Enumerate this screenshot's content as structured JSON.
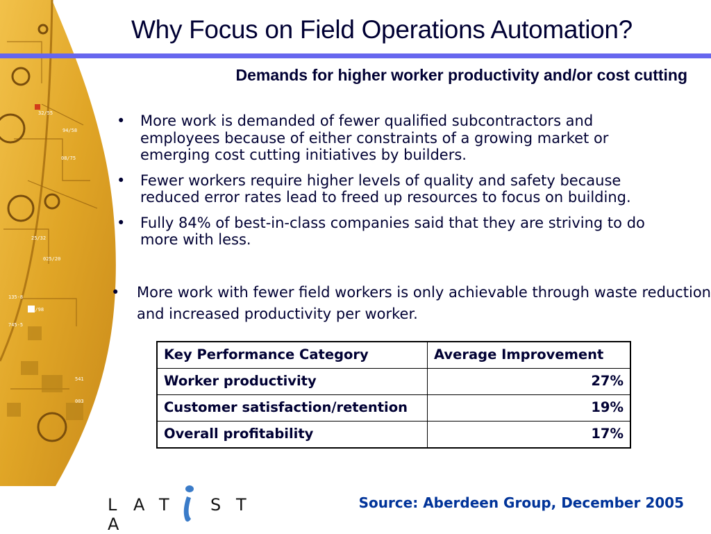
{
  "slide": {
    "title": "Why Focus on Field Operations Automation?",
    "subtitle": "Demands for higher worker productivity and/or cost cutting"
  },
  "bullets": [
    {
      "marker": "•",
      "text": "More work is demanded of fewer qualified subcontractors and employees because of either constraints of a growing market or emerging cost cutting initiatives by builders."
    },
    {
      "marker": "•",
      "text": "Fewer workers require higher levels of quality and safety because reduced error rates lead to freed up resources to focus on building."
    },
    {
      "marker": "•",
      "text": "Fully 84% of best-in-class companies said that they are striving to do more with less."
    }
  ],
  "bullet_wide": {
    "marker": "•",
    "text": "More work with fewer field workers is only achievable through waste reduction and increased productivity per worker."
  },
  "table": {
    "headers": [
      "Key Performance Category",
      "Average Improvement"
    ],
    "rows": [
      [
        "Worker productivity",
        "27%"
      ],
      [
        "Customer satisfaction/retention",
        "19%"
      ],
      [
        "Overall profitability",
        "17%"
      ]
    ]
  },
  "footer": {
    "logo_text": "LATISTA",
    "logo_letters": [
      "L",
      "A",
      "T",
      "",
      "S",
      "T",
      "A"
    ],
    "source": "Source: Aberdeen Group, December 2005"
  },
  "colors": {
    "title_rule": "#6666ee",
    "source_text": "#003399",
    "leaf_gold": "#e0a526",
    "logo_blue": "#3a7bc8"
  },
  "icons": {
    "leaf": "decorative-circuit-leaf",
    "logo": "latista-logo"
  }
}
